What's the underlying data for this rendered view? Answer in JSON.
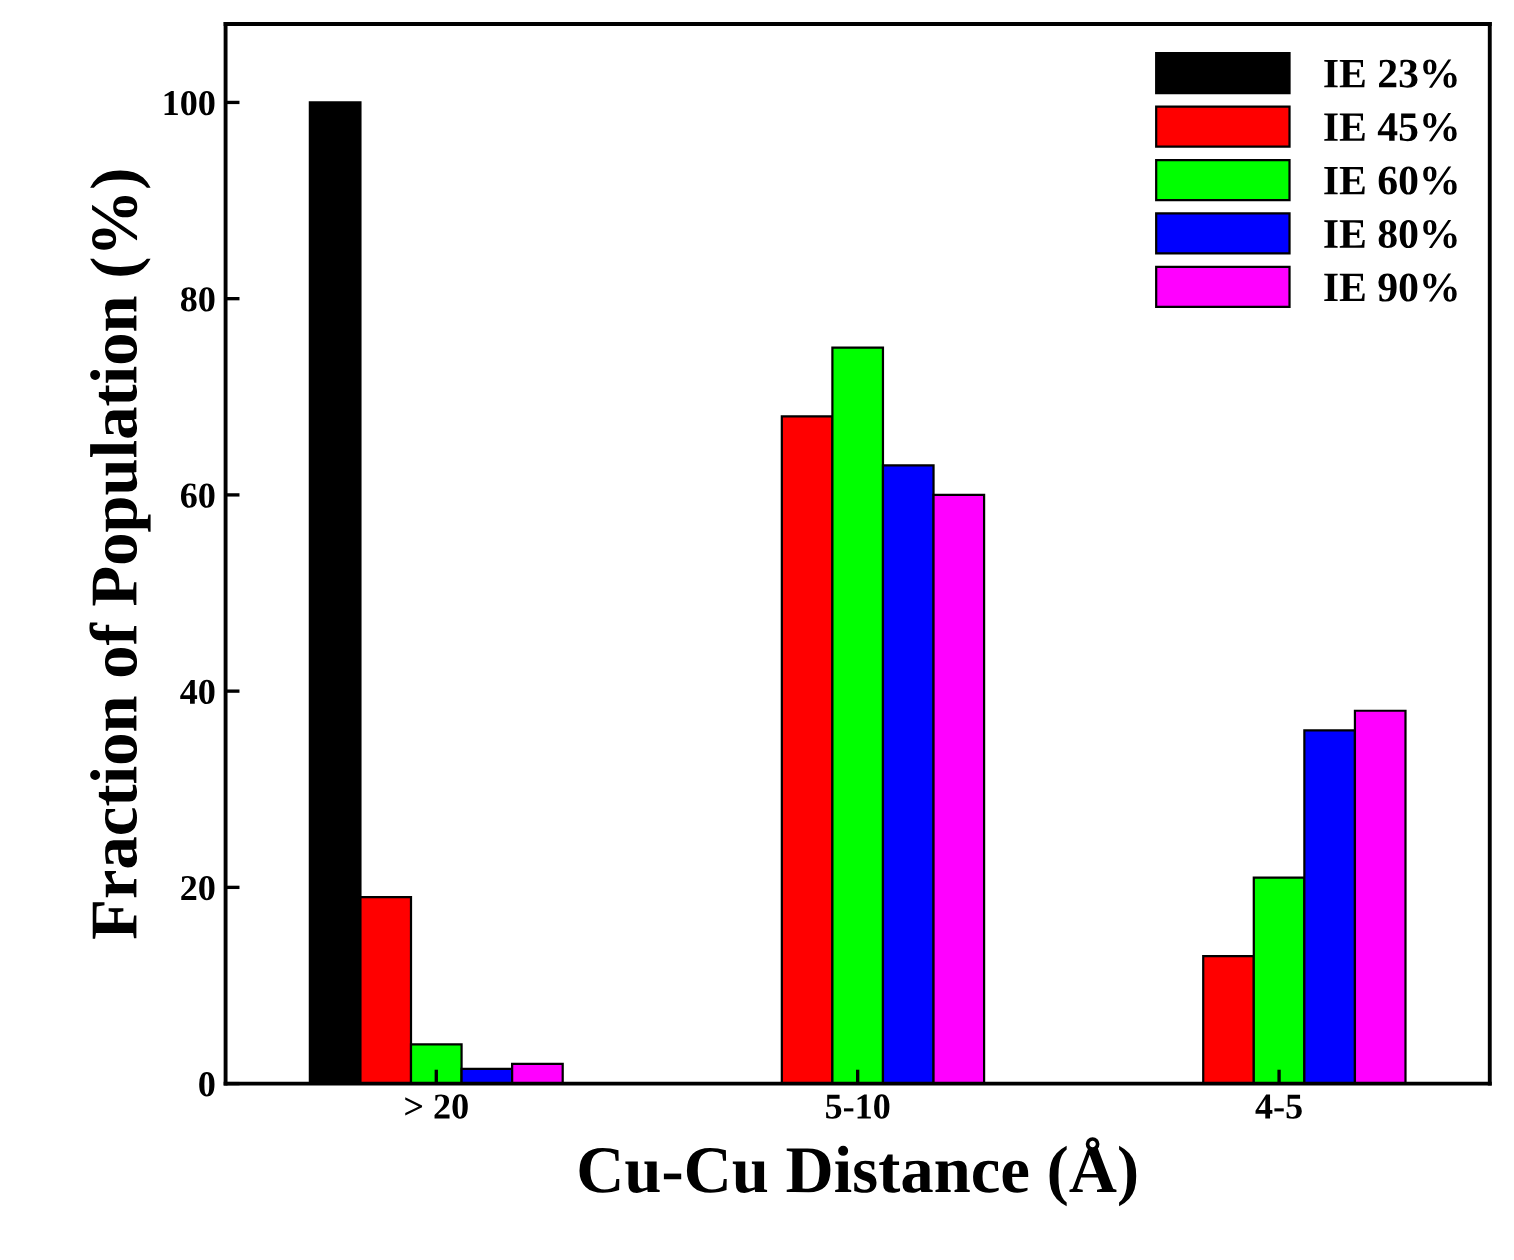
{
  "chart_data": {
    "type": "bar",
    "xlabel": "Cu-Cu Distance (Å)",
    "ylabel": "Fraction of Population (%)",
    "categories": [
      "> 20",
      "5-10",
      "4-5"
    ],
    "series": [
      {
        "name": "IE 23%",
        "color": "#000000",
        "values": [
          100,
          0,
          0
        ]
      },
      {
        "name": "IE 45%",
        "color": "#ff0000",
        "values": [
          19,
          68,
          13
        ]
      },
      {
        "name": "IE 60%",
        "color": "#00ff00",
        "values": [
          4,
          75,
          21
        ]
      },
      {
        "name": "IE 80%",
        "color": "#0000ff",
        "values": [
          1.5,
          63,
          36
        ]
      },
      {
        "name": "IE 90%",
        "color": "#ff00ff",
        "values": [
          2,
          60,
          38
        ]
      }
    ],
    "ylim": [
      0,
      108
    ],
    "yticks": [
      0,
      20,
      40,
      60,
      80,
      100
    ],
    "grid": false,
    "legend": "top right"
  }
}
